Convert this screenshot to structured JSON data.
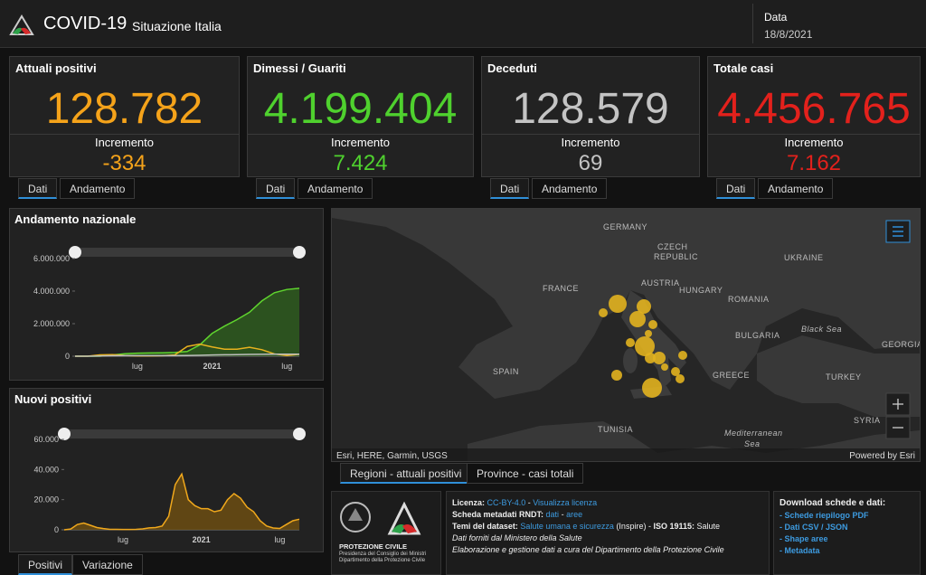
{
  "header": {
    "title": "COVID-19",
    "subtitle": "Situazione Italia",
    "date_label": "Data",
    "date": "18/8/2021"
  },
  "cards": [
    {
      "title": "Attuali positivi",
      "value": "128.782",
      "increment_label": "Incremento",
      "increment": "-334",
      "color": "#f5a31a"
    },
    {
      "title": "Dimessi / Guariti",
      "value": "4.199.404",
      "increment_label": "Incremento",
      "increment": "7.424",
      "color": "#4fd12e"
    },
    {
      "title": "Deceduti",
      "value": "128.579",
      "increment_label": "Incremento",
      "increment": "69",
      "color": "#c4c4c4"
    },
    {
      "title": "Totale casi",
      "value": "4.456.765",
      "increment_label": "Incremento",
      "increment": "7.162",
      "color": "#e3211c"
    }
  ],
  "card_tabs": [
    "Dati",
    "Andamento"
  ],
  "chart_data": [
    {
      "type": "line",
      "title": "Andamento nazionale",
      "categories": [
        null,
        null,
        null,
        null,
        null,
        "lug",
        null,
        null,
        null,
        null,
        null,
        "2021",
        null,
        null,
        null,
        null,
        null,
        "lug",
        null
      ],
      "series": [
        {
          "color": "#5fd42e",
          "fill": "#2e5a1f",
          "values": [
            0,
            0,
            3000,
            75000,
            150000,
            190000,
            200000,
            210000,
            230000,
            290000,
            690000,
            1400000,
            1850000,
            2250000,
            2700000,
            3400000,
            3900000,
            4100000,
            4170000
          ]
        },
        {
          "color": "#e8b21e",
          "fill": null,
          "values": [
            0,
            1500,
            80000,
            100000,
            42000,
            15000,
            12000,
            25000,
            78000,
            600000,
            740000,
            570000,
            430000,
            430000,
            550000,
            400000,
            140000,
            45000,
            120000
          ]
        },
        {
          "color": "#bdbdbd",
          "fill": null,
          "values": [
            0,
            30,
            14000,
            28000,
            33000,
            35000,
            35000,
            35500,
            36000,
            39000,
            56000,
            75000,
            89000,
            97000,
            110000,
            120000,
            126000,
            127500,
            128000
          ]
        }
      ],
      "ylim": [
        0,
        6720000
      ],
      "yticks": [
        0,
        {
          "value": 2000000,
          "label": "2.000.000"
        },
        {
          "value": 4000000,
          "label": "4.000.000"
        },
        {
          "value": 6000000,
          "label": "6.000.000"
        }
      ],
      "grid": false
    },
    {
      "type": "line",
      "title": "Nuovi positivi",
      "categories": [
        null,
        null,
        null,
        null,
        null,
        null,
        null,
        null,
        null,
        "lug",
        null,
        null,
        null,
        null,
        null,
        null,
        null,
        null,
        null,
        null,
        null,
        "2021",
        null,
        null,
        null,
        null,
        null,
        null,
        null,
        null,
        null,
        null,
        null,
        "lug",
        null,
        null,
        null
      ],
      "series": [
        {
          "color": "#f0a81c",
          "fill": "#6b4c12",
          "values": [
            0,
            500,
            3500,
            4500,
            3000,
            1500,
            800,
            300,
            300,
            200,
            200,
            300,
            600,
            1300,
            1500,
            2500,
            9000,
            30000,
            37000,
            20000,
            16000,
            14000,
            14000,
            12000,
            13000,
            20000,
            24000,
            21000,
            15000,
            12000,
            6000,
            2500,
            1200,
            900,
            3500,
            6000,
            7000
          ]
        }
      ],
      "ylim": [
        0,
        69000
      ],
      "yticks": [
        0,
        {
          "value": 20000,
          "label": "20.000"
        },
        {
          "value": 40000,
          "label": "40.000"
        },
        {
          "value": 60000,
          "label": "60.000"
        }
      ],
      "grid": false
    }
  ],
  "chart_tabs": [
    "Positivi",
    "Variazione"
  ],
  "map": {
    "labels": [
      "GERMANY",
      "CZECH",
      "REPUBLIC",
      "UKRAINE",
      "FRANCE",
      "AUSTRIA",
      "HUNGARY",
      "ROMANIA",
      "Black Sea",
      "BULGARIA",
      "GEORGIA",
      "SPAIN",
      "GREECE",
      "TURKEY",
      "SYRIA",
      "TUNISIA",
      "Mediterranean",
      "Sea"
    ],
    "attribution": "Esri, HERE, Garmin, USGS",
    "powered": "Powered by Esri",
    "tabs": [
      "Regioni - attuali positivi",
      "Province - casi totali"
    ]
  },
  "footer": {
    "logo": [
      "PROTEZIONE CIVILE",
      "Presidenza del Consiglio dei Ministri",
      "Dipartimento della Protezione Civile"
    ],
    "license": [
      "Licenza:",
      "CC-BY-4.0",
      " - ",
      "Visualizza licenza"
    ],
    "metadata": [
      "Scheda metadati RNDT:",
      "dati",
      " - ",
      "aree"
    ],
    "themes": [
      "Temi del dataset:",
      "Salute umana e sicurezza",
      " (Inspire) - ",
      "ISO 19115:",
      " Salute"
    ],
    "source": "Dati forniti dal Ministero della Salute",
    "processing": "Elaborazione e gestione dati a cura del Dipartimento della Protezione Civile",
    "download_title": "Download schede e dati:",
    "downloads": [
      "- Schede riepilogo PDF",
      "- Dati CSV / JSON",
      "- Shape aree",
      "- Metadata"
    ]
  }
}
